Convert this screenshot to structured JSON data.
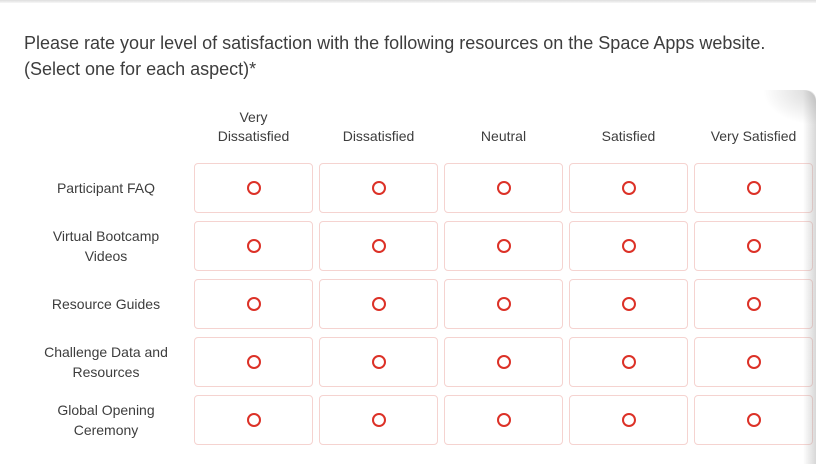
{
  "question": {
    "title": "Please rate your level of satisfaction with the following resources on the Space Apps website. (Select one for each aspect)*"
  },
  "matrix": {
    "columns": [
      "Very Dissatisfied",
      "Dissatisfied",
      "Neutral",
      "Satisfied",
      "Very Satisfied"
    ],
    "rows": [
      {
        "label": "Participant FAQ",
        "selected": null
      },
      {
        "label": "Virtual Bootcamp Videos",
        "selected": null
      },
      {
        "label": "Resource Guides",
        "selected": null
      },
      {
        "label": "Challenge Data and Resources",
        "selected": null
      },
      {
        "label": "Global Opening Ceremony",
        "selected": null
      }
    ],
    "radio_state": "unselected"
  },
  "colors": {
    "radio_ring": "#dc3127",
    "cell_border": "#f5d3d0",
    "text": "#3d3d3d"
  }
}
